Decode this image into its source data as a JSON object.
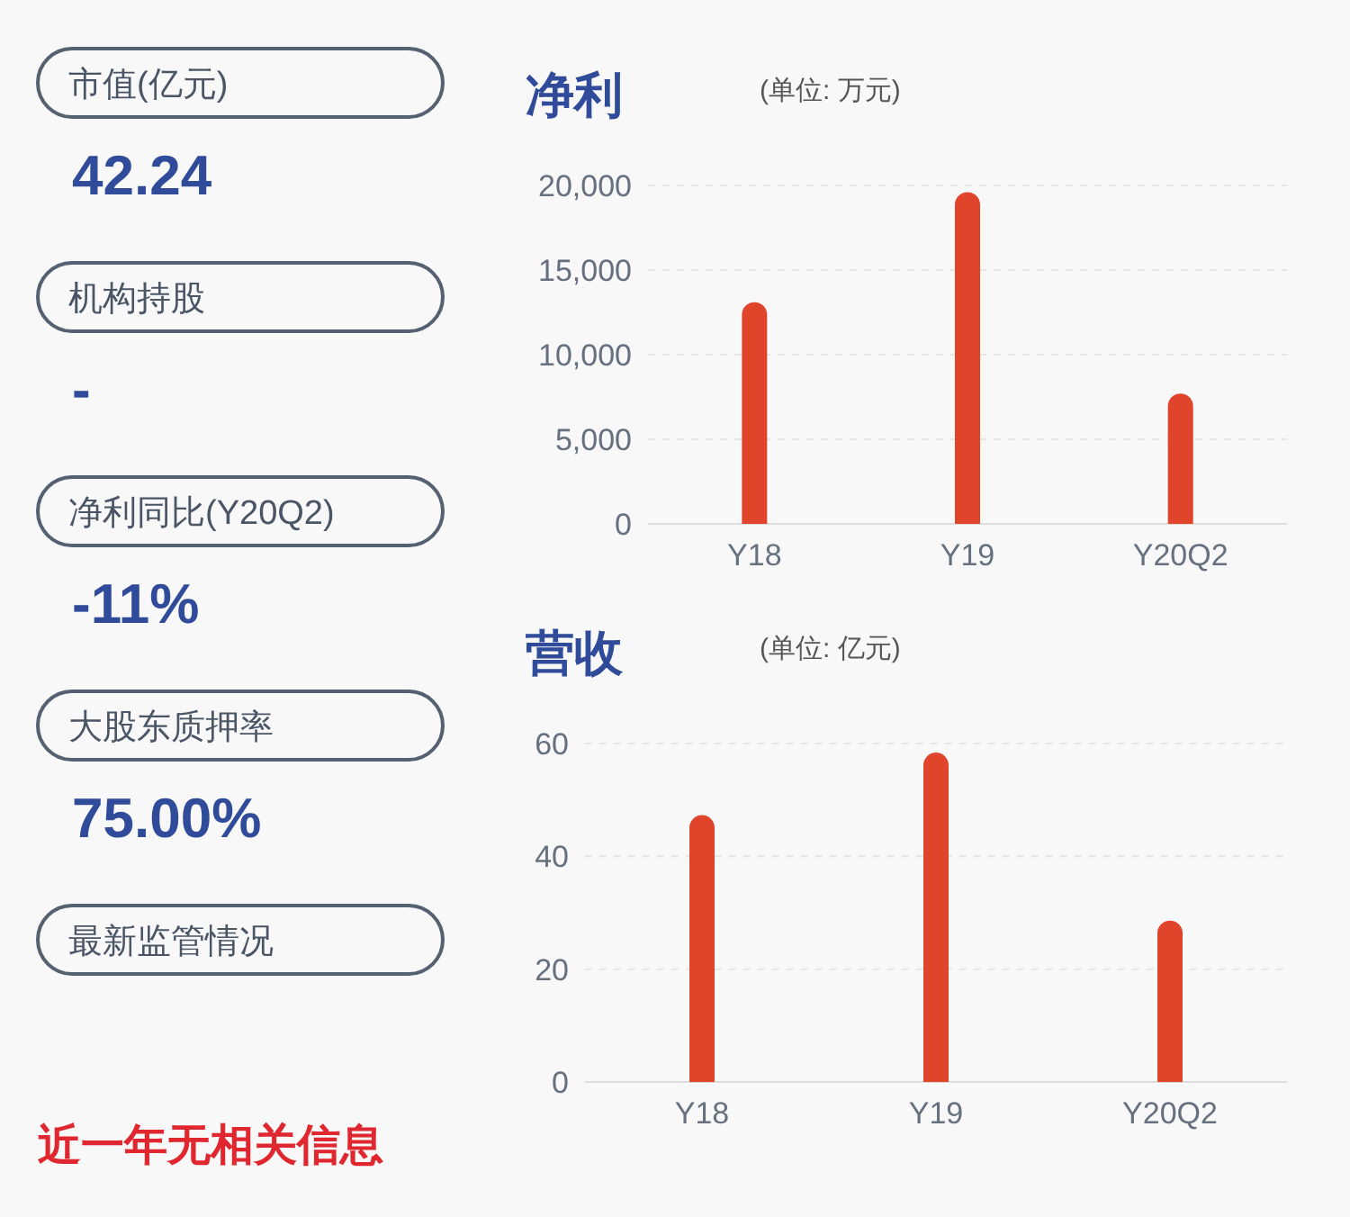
{
  "chart_data": [
    {
      "type": "other",
      "annotations": [
        "市值(亿元)",
        "42.24",
        "机构持股",
        "-",
        "净利同比(Y20Q2)",
        "-11%",
        "大股东质押率",
        "75.00%",
        "最新监管情况",
        "近一年无相关信息"
      ]
    },
    {
      "type": "bar",
      "title": "净利",
      "subtitle": "(单位: 万元)",
      "categories": [
        "Y18",
        "Y19",
        "Y20Q2"
      ],
      "values": [
        13100,
        19600,
        7700
      ],
      "color": "#e0452c",
      "ylim": [
        0,
        20000
      ],
      "yticks": [
        0,
        {
          "value": 5000,
          "label": "5,000"
        },
        {
          "value": 10000,
          "label": "10,000"
        },
        {
          "value": 15000,
          "label": "15,000"
        },
        {
          "value": 20000,
          "label": "20,000"
        }
      ],
      "grid": "y"
    },
    {
      "type": "bar",
      "title": "营收",
      "subtitle": "(单位: 亿元)",
      "categories": [
        "Y18",
        "Y19",
        "Y20Q2"
      ],
      "values": [
        47.3,
        58.4,
        28.6
      ],
      "color": "#e0452c",
      "ylim": [
        0,
        60
      ],
      "yticks": [
        0,
        20,
        40,
        60
      ],
      "grid": "y"
    }
  ]
}
